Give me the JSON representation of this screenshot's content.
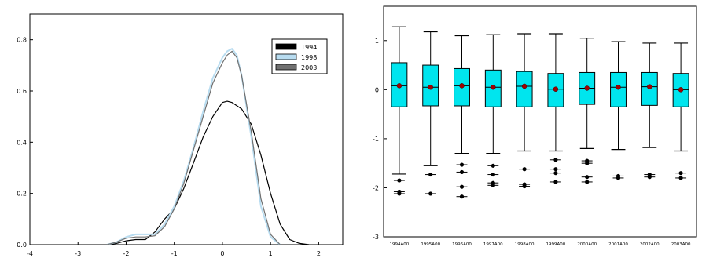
{
  "chart_data": [
    {
      "type": "line",
      "title": "",
      "xlabel": "",
      "ylabel": "",
      "xlim": [
        -4,
        2.5
      ],
      "ylim": [
        0,
        0.9
      ],
      "x_ticks": [
        -4,
        -3,
        -2,
        -1,
        0,
        1,
        2
      ],
      "y_ticks": [
        0.0,
        0.2,
        0.4,
        0.6,
        0.8
      ],
      "y_tick_labels": [
        "0.0",
        "0.2",
        "0.4",
        "0.6",
        "0.8"
      ],
      "x_tick_labels": [
        "-4",
        "-3",
        "-2",
        "-1",
        "0",
        "1",
        "2"
      ],
      "legend": {
        "placement": "top-right",
        "entries": [
          "1994",
          "1998",
          "2003"
        ]
      },
      "series": [
        {
          "name": "1994",
          "color": "#000000",
          "x": [
            -2.4,
            -2.2,
            -2.0,
            -1.8,
            -1.6,
            -1.4,
            -1.2,
            -1.0,
            -0.8,
            -0.6,
            -0.4,
            -0.2,
            0.0,
            0.1,
            0.2,
            0.4,
            0.6,
            0.8,
            1.0,
            1.2,
            1.4,
            1.6,
            1.8
          ],
          "y": [
            0.0,
            0.005,
            0.015,
            0.02,
            0.02,
            0.05,
            0.1,
            0.14,
            0.22,
            0.32,
            0.42,
            0.5,
            0.555,
            0.56,
            0.555,
            0.53,
            0.47,
            0.35,
            0.2,
            0.08,
            0.02,
            0.005,
            0.0
          ]
        },
        {
          "name": "1998",
          "color": "#b8dcf0",
          "x": [
            -2.4,
            -2.2,
            -2.0,
            -1.8,
            -1.6,
            -1.4,
            -1.2,
            -1.0,
            -0.8,
            -0.6,
            -0.4,
            -0.2,
            0.0,
            0.1,
            0.2,
            0.3,
            0.4,
            0.6,
            0.8,
            1.0,
            1.2
          ],
          "y": [
            0.0,
            0.01,
            0.03,
            0.04,
            0.04,
            0.04,
            0.08,
            0.15,
            0.25,
            0.38,
            0.52,
            0.65,
            0.73,
            0.755,
            0.765,
            0.74,
            0.66,
            0.42,
            0.15,
            0.03,
            0.0
          ]
        },
        {
          "name": "2003",
          "color": "#707070",
          "x": [
            -2.4,
            -2.2,
            -2.0,
            -1.8,
            -1.6,
            -1.4,
            -1.2,
            -1.0,
            -0.8,
            -0.6,
            -0.4,
            -0.2,
            0.0,
            0.1,
            0.2,
            0.3,
            0.4,
            0.6,
            0.8,
            1.0,
            1.2
          ],
          "y": [
            0.0,
            0.01,
            0.025,
            0.03,
            0.03,
            0.035,
            0.07,
            0.14,
            0.24,
            0.37,
            0.5,
            0.63,
            0.71,
            0.74,
            0.755,
            0.73,
            0.66,
            0.44,
            0.18,
            0.04,
            0.0
          ]
        }
      ]
    },
    {
      "type": "box",
      "title": "",
      "xlabel": "",
      "ylabel": "",
      "ylim": [
        -3,
        1.7
      ],
      "y_ticks": [
        -3,
        -2,
        -1,
        0,
        1
      ],
      "y_tick_labels": [
        "-3",
        "-2",
        "-1",
        "0",
        "1"
      ],
      "box_color": "#00e5ee",
      "mean_color": "#a00000",
      "categories": [
        "1994A00",
        "1995A00",
        "1996A00",
        "1997A00",
        "1998A00",
        "1999A00",
        "2000A00",
        "2001A00",
        "2002A00",
        "2003A00"
      ],
      "boxes": [
        {
          "whisker_high": 1.28,
          "q3": 0.55,
          "median": 0.08,
          "mean": 0.08,
          "q1": -0.35,
          "whisker_low": -1.72,
          "outliers": [
            -1.85,
            -2.08,
            -2.12
          ]
        },
        {
          "whisker_high": 1.18,
          "q3": 0.5,
          "median": 0.05,
          "mean": 0.05,
          "q1": -0.33,
          "whisker_low": -1.55,
          "outliers": [
            -1.73,
            -2.12
          ]
        },
        {
          "whisker_high": 1.1,
          "q3": 0.43,
          "median": 0.08,
          "mean": 0.08,
          "q1": -0.33,
          "whisker_low": -1.3,
          "outliers": [
            -1.53,
            -1.68,
            -1.98,
            -2.18
          ]
        },
        {
          "whisker_high": 1.12,
          "q3": 0.4,
          "median": 0.05,
          "mean": 0.05,
          "q1": -0.35,
          "whisker_low": -1.3,
          "outliers": [
            -1.55,
            -1.73,
            -1.9,
            -1.95
          ]
        },
        {
          "whisker_high": 1.14,
          "q3": 0.37,
          "median": 0.07,
          "mean": 0.07,
          "q1": -0.35,
          "whisker_low": -1.25,
          "outliers": [
            -1.62,
            -1.93,
            -1.97
          ]
        },
        {
          "whisker_high": 1.14,
          "q3": 0.33,
          "median": 0.01,
          "mean": 0.01,
          "q1": -0.35,
          "whisker_low": -1.25,
          "outliers": [
            -1.43,
            -1.62,
            -1.7,
            -1.88
          ]
        },
        {
          "whisker_high": 1.05,
          "q3": 0.35,
          "median": 0.03,
          "mean": 0.03,
          "q1": -0.3,
          "whisker_low": -1.2,
          "outliers": [
            -1.45,
            -1.5,
            -1.78,
            -1.88
          ]
        },
        {
          "whisker_high": 0.98,
          "q3": 0.35,
          "median": 0.05,
          "mean": 0.05,
          "q1": -0.35,
          "whisker_low": -1.22,
          "outliers": [
            -1.76,
            -1.8
          ]
        },
        {
          "whisker_high": 0.95,
          "q3": 0.35,
          "median": 0.06,
          "mean": 0.06,
          "q1": -0.32,
          "whisker_low": -1.18,
          "outliers": [
            -1.73,
            -1.78
          ]
        },
        {
          "whisker_high": 0.95,
          "q3": 0.33,
          "median": 0.0,
          "mean": 0.0,
          "q1": -0.35,
          "whisker_low": -1.25,
          "outliers": [
            -1.7,
            -1.8
          ]
        }
      ]
    }
  ]
}
